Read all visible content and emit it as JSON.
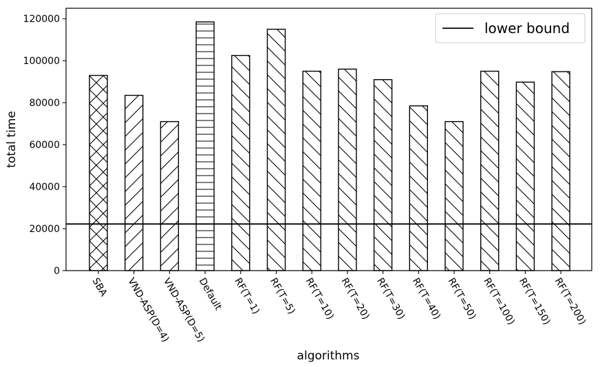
{
  "chart_data": {
    "type": "bar",
    "xlabel": "algorithms",
    "ylabel": "total time",
    "ylim": [
      0,
      125000
    ],
    "yticks": [
      0,
      20000,
      40000,
      60000,
      80000,
      100000,
      120000
    ],
    "ytick_labels": [
      "0",
      "20000",
      "40000",
      "60000",
      "80000",
      "100000",
      "120000"
    ],
    "categories": [
      "SBA",
      "VND-ASP(D=4)",
      "VND-ASP(D=5)",
      "Default",
      "RF(T=1)",
      "RF(T=5)",
      "RF(T=10)",
      "RF(T=20)",
      "RF(T=30)",
      "RF(T=40)",
      "RF(T=50)",
      "RF(T=100)",
      "RF(T=150)",
      "RF(T=200)"
    ],
    "values": [
      93000,
      83500,
      71000,
      118500,
      102500,
      115000,
      95000,
      96000,
      91000,
      78500,
      71000,
      95000,
      89800,
      94800
    ],
    "hatches": [
      "cross",
      "forward",
      "forward",
      "horizontal",
      "back",
      "back",
      "back",
      "back",
      "back",
      "back",
      "back",
      "back",
      "back",
      "back"
    ],
    "bar_fill": "#ffffff",
    "bar_edge": "#000000",
    "hline": {
      "value": 22200,
      "label": "lower bound",
      "color": "#000000"
    },
    "legend": {
      "position": "top-right",
      "entries": [
        "lower bound"
      ]
    },
    "grid": false
  }
}
